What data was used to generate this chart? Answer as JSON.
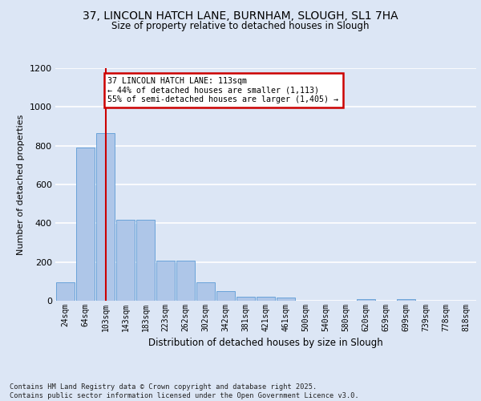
{
  "title1": "37, LINCOLN HATCH LANE, BURNHAM, SLOUGH, SL1 7HA",
  "title2": "Size of property relative to detached houses in Slough",
  "xlabel": "Distribution of detached houses by size in Slough",
  "ylabel": "Number of detached properties",
  "categories": [
    "24sqm",
    "64sqm",
    "103sqm",
    "143sqm",
    "183sqm",
    "223sqm",
    "262sqm",
    "302sqm",
    "342sqm",
    "381sqm",
    "421sqm",
    "461sqm",
    "500sqm",
    "540sqm",
    "580sqm",
    "620sqm",
    "659sqm",
    "699sqm",
    "739sqm",
    "778sqm",
    "818sqm"
  ],
  "values": [
    95,
    790,
    865,
    420,
    420,
    207,
    207,
    95,
    50,
    22,
    22,
    15,
    0,
    0,
    0,
    10,
    0,
    10,
    0,
    0,
    0
  ],
  "bar_color": "#aec6e8",
  "bar_edge_color": "#5b9bd5",
  "vline_x_idx": 2.0,
  "annotation_text": "37 LINCOLN HATCH LANE: 113sqm\n← 44% of detached houses are smaller (1,113)\n55% of semi-detached houses are larger (1,405) →",
  "annotation_box_color": "#ffffff",
  "annotation_box_edge": "#cc0000",
  "vline_color": "#cc0000",
  "bg_color": "#dce6f5",
  "plot_bg_color": "#dce6f5",
  "grid_color": "#ffffff",
  "footer": "Contains HM Land Registry data © Crown copyright and database right 2025.\nContains public sector information licensed under the Open Government Licence v3.0.",
  "ylim": [
    0,
    1200
  ],
  "yticks": [
    0,
    200,
    400,
    600,
    800,
    1000,
    1200
  ]
}
